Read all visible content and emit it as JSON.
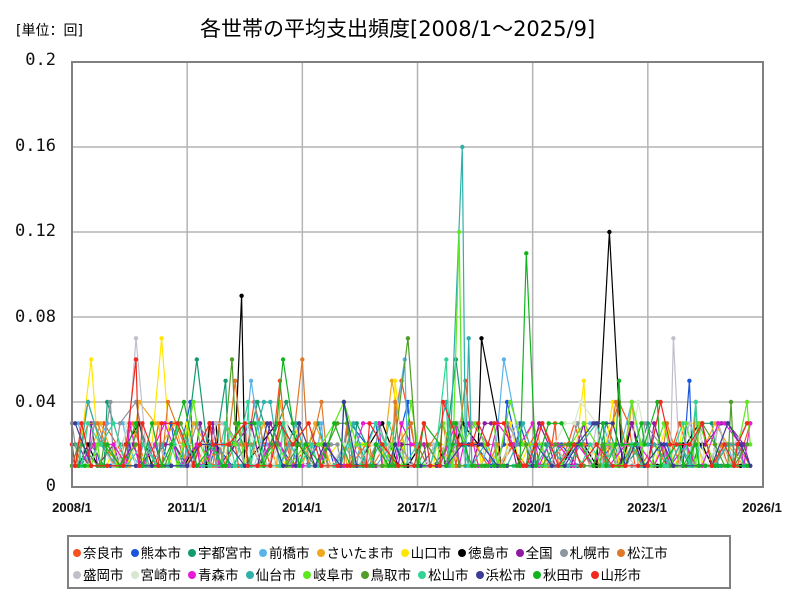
{
  "header": {
    "unit_label": "[単位：回]",
    "title": "各世帯の平均支出頻度[2008/1～2025/9]"
  },
  "chart_data": {
    "type": "line",
    "title": "各世帯の平均支出頻度[2008/1～2025/9]",
    "unit": "回",
    "xlabel": "",
    "ylabel": "",
    "ylim": [
      0,
      0.2
    ],
    "xlim": [
      "2008/1",
      "2026/1"
    ],
    "yticks": [
      "0.2",
      "0.16",
      "0.12",
      "0.08",
      "0.04",
      "0"
    ],
    "xticks": [
      "2008/1",
      "2011/1",
      "2014/1",
      "2017/1",
      "2020/1",
      "2023/1",
      "2026/1"
    ],
    "grid": true,
    "legend_position": "bottom",
    "baseline_note": "Most series fluctuate between 0.01 and 0.03; notable peaks listed per series",
    "series": [
      {
        "name": "奈良市",
        "color": "#f4511e",
        "peaks": [
          [
            "2010/4",
            0.03
          ],
          [
            "2013/6",
            0.05
          ],
          [
            "2016/8",
            0.05
          ],
          [
            "2018/4",
            0.05
          ],
          [
            "2025/9",
            0.03
          ]
        ]
      },
      {
        "name": "熊本市",
        "color": "#1a56db",
        "peaks": [
          [
            "2011/2",
            0.04
          ],
          [
            "2019/5",
            0.04
          ],
          [
            "2024/2",
            0.05
          ]
        ]
      },
      {
        "name": "宇都宮市",
        "color": "#129b6f",
        "peaks": [
          [
            "2011/4",
            0.06
          ],
          [
            "2012/1",
            0.05
          ],
          [
            "2018/1",
            0.06
          ]
        ]
      },
      {
        "name": "前橋市",
        "color": "#5ab4e8",
        "peaks": [
          [
            "2016/9",
            0.06
          ],
          [
            "2019/4",
            0.06
          ],
          [
            "2012/9",
            0.05
          ]
        ]
      },
      {
        "name": "さいたま市",
        "color": "#f0a81e",
        "peaks": [
          [
            "2016/5",
            0.05
          ],
          [
            "2022/8",
            0.04
          ]
        ]
      },
      {
        "name": "山口市",
        "color": "#ffe600",
        "peaks": [
          [
            "2008/7",
            0.06
          ],
          [
            "2010/5",
            0.07
          ],
          [
            "2016/6",
            0.05
          ],
          [
            "2021/5",
            0.05
          ]
        ]
      },
      {
        "name": "徳島市",
        "color": "#000000",
        "peaks": [
          [
            "2012/6",
            0.09
          ],
          [
            "2018/9",
            0.07
          ],
          [
            "2022/1",
            0.12
          ],
          [
            "2024/5",
            0.03
          ]
        ]
      },
      {
        "name": "全国",
        "color": "#8e1aa0",
        "peaks": [
          [
            "2025/9",
            0.01
          ]
        ]
      },
      {
        "name": "札幌市",
        "color": "#8c96a0",
        "peaks": [
          [
            "2009/1",
            0.04
          ],
          [
            "2009/9",
            0.04
          ]
        ]
      },
      {
        "name": "松江市",
        "color": "#e07828",
        "peaks": [
          [
            "2014/1",
            0.06
          ],
          [
            "2024/4",
            0.04
          ],
          [
            "2012/4",
            0.05
          ]
        ]
      },
      {
        "name": "盛岡市",
        "color": "#c0c0cc",
        "peaks": [
          [
            "2009/9",
            0.07
          ],
          [
            "2023/9",
            0.07
          ]
        ]
      },
      {
        "name": "宮崎市",
        "color": "#d6e8d0",
        "peaks": [
          [
            "2023/6",
            0.03
          ]
        ]
      },
      {
        "name": "青森市",
        "color": "#e81ad6",
        "peaks": [
          [
            "2016/1",
            0.03
          ]
        ]
      },
      {
        "name": "仙台市",
        "color": "#2fb0a8",
        "peaks": [
          [
            "2018/3",
            0.16
          ],
          [
            "2018/5",
            0.07
          ]
        ]
      },
      {
        "name": "岐阜市",
        "color": "#5ee81e",
        "peaks": [
          [
            "2018/2",
            0.12
          ],
          [
            "2011/3",
            0.04
          ]
        ]
      },
      {
        "name": "鳥取市",
        "color": "#4e9e28",
        "peaks": [
          [
            "2016/10",
            0.07
          ],
          [
            "2012/3",
            0.06
          ]
        ]
      },
      {
        "name": "松山市",
        "color": "#32d496",
        "peaks": [
          [
            "2024/4",
            0.04
          ],
          [
            "2017/10",
            0.06
          ]
        ]
      },
      {
        "name": "浜松市",
        "color": "#3c3c96",
        "peaks": [
          [
            "2015/2",
            0.04
          ]
        ]
      },
      {
        "name": "秋田市",
        "color": "#12b41e",
        "peaks": [
          [
            "2019/11",
            0.11
          ],
          [
            "2022/4",
            0.05
          ],
          [
            "2013/7",
            0.06
          ]
        ]
      },
      {
        "name": "山形市",
        "color": "#f0281e",
        "peaks": [
          [
            "2009/9",
            0.06
          ]
        ]
      }
    ]
  },
  "legend": {
    "row1": [
      {
        "label": "奈良市",
        "color": "#f4511e"
      },
      {
        "label": "熊本市",
        "color": "#1a56db"
      },
      {
        "label": "宇都宮市",
        "color": "#129b6f"
      },
      {
        "label": "前橋市",
        "color": "#5ab4e8"
      },
      {
        "label": "さいたま市",
        "color": "#f0a81e"
      },
      {
        "label": "山口市",
        "color": "#ffe600"
      },
      {
        "label": "徳島市",
        "color": "#000000"
      },
      {
        "label": "全国",
        "color": "#8e1aa0"
      },
      {
        "label": "札幌市",
        "color": "#8c96a0"
      },
      {
        "label": "松江市",
        "color": "#e07828"
      }
    ],
    "row2": [
      {
        "label": "盛岡市",
        "color": "#c0c0cc"
      },
      {
        "label": "宮崎市",
        "color": "#d6e8d0"
      },
      {
        "label": "青森市",
        "color": "#e81ad6"
      },
      {
        "label": "仙台市",
        "color": "#2fb0a8"
      },
      {
        "label": "岐阜市",
        "color": "#5ee81e"
      },
      {
        "label": "鳥取市",
        "color": "#4e9e28"
      },
      {
        "label": "松山市",
        "color": "#32d496"
      },
      {
        "label": "浜松市",
        "color": "#3c3c96"
      },
      {
        "label": "秋田市",
        "color": "#12b41e"
      },
      {
        "label": "山形市",
        "color": "#f0281e"
      }
    ]
  }
}
